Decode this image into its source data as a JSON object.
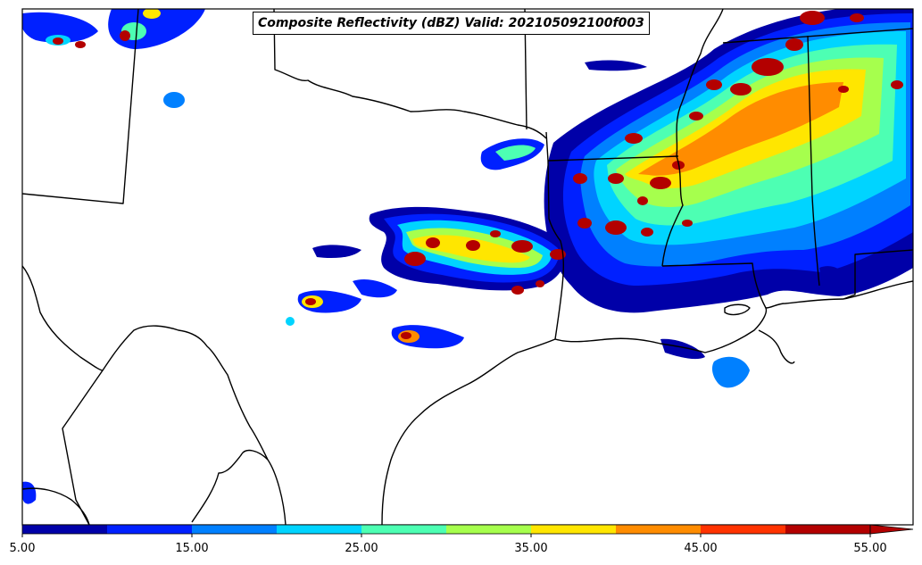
{
  "title": "Composite Reflectivity (dBZ) Valid: 202105092100f003",
  "colorbar": {
    "ticks": [
      "5.00",
      "15.00",
      "25.00",
      "35.00",
      "45.00",
      "55.00"
    ],
    "bins": [
      5,
      10,
      15,
      20,
      25,
      30,
      35,
      40,
      45,
      50,
      55
    ],
    "colors": [
      "#0000a8",
      "#0020ff",
      "#0080ff",
      "#00d4ff",
      "#4dffb3",
      "#a6ff4d",
      "#ffe600",
      "#ff8c00",
      "#ff3300",
      "#b30000"
    ],
    "extend": "max"
  },
  "colors": {
    "background": "#ffffff",
    "borders": "#000000"
  }
}
